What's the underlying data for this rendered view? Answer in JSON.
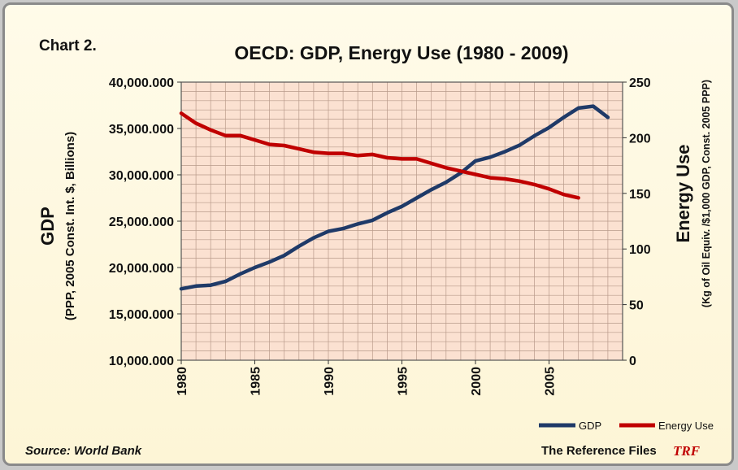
{
  "chart_label": "Chart 2.",
  "source": "Source: World Bank",
  "footer": {
    "brand": "The Reference Files",
    "logo": "TRF"
  },
  "colors": {
    "gdp": "#1f3a68",
    "energy": "#c00000",
    "plot_bg": "#fbe1d1",
    "grid": "#b89a8a",
    "logo": "#c00000"
  },
  "chart_data": {
    "type": "line",
    "title": "OECD: GDP, Energy Use (1980 - 2009)",
    "ylabel_left_main": "GDP",
    "ylabel_left_sub": "(PPP, 2005 Const. Int. $, Billions)",
    "ylabel_right_main": "Energy Use",
    "ylabel_right_sub": "(Kg of Oil Equiv. /$1,000 GDP, Const. 2005 PPP)",
    "xlim": [
      1980,
      2009
    ],
    "x_tick_labels": [
      "1980",
      "1985",
      "1990",
      "1995",
      "2000",
      "2005"
    ],
    "y_left": {
      "range": [
        10000,
        40000
      ],
      "tick_labels": [
        "10,000.000",
        "15,000.000",
        "20,000.000",
        "25,000.000",
        "30,000.000",
        "35,000.000",
        "40,000.000"
      ]
    },
    "y_right": {
      "range": [
        0,
        250
      ],
      "tick_labels": [
        "0",
        "50",
        "100",
        "150",
        "200",
        "250"
      ]
    },
    "grid": true,
    "legend_position": "bottom-right",
    "series": [
      {
        "name": "GDP",
        "axis": "left",
        "x": [
          1980,
          1981,
          1982,
          1983,
          1984,
          1985,
          1986,
          1987,
          1988,
          1989,
          1990,
          1991,
          1992,
          1993,
          1994,
          1995,
          1996,
          1997,
          1998,
          1999,
          2000,
          2001,
          2002,
          2003,
          2004,
          2005,
          2006,
          2007,
          2008,
          2009
        ],
        "values": [
          17700,
          18000,
          18100,
          18500,
          19300,
          20000,
          20600,
          21300,
          22300,
          23200,
          23900,
          24200,
          24700,
          25100,
          25900,
          26600,
          27500,
          28400,
          29200,
          30200,
          31500,
          31900,
          32500,
          33200,
          34200,
          35100,
          36200,
          37200,
          37400,
          36200
        ]
      },
      {
        "name": "Energy Use",
        "axis": "right",
        "x": [
          1980,
          1981,
          1982,
          1983,
          1984,
          1985,
          1986,
          1987,
          1988,
          1989,
          1990,
          1991,
          1992,
          1993,
          1994,
          1995,
          1996,
          1997,
          1998,
          1999,
          2000,
          2001,
          2002,
          2003,
          2004,
          2005,
          2006,
          2007
        ],
        "values": [
          222,
          213,
          207,
          202,
          202,
          198,
          194,
          193,
          190,
          187,
          186,
          186,
          184,
          185,
          182,
          181,
          181,
          177,
          173,
          170,
          167,
          164,
          163,
          161,
          158,
          154,
          149,
          146
        ]
      }
    ]
  }
}
